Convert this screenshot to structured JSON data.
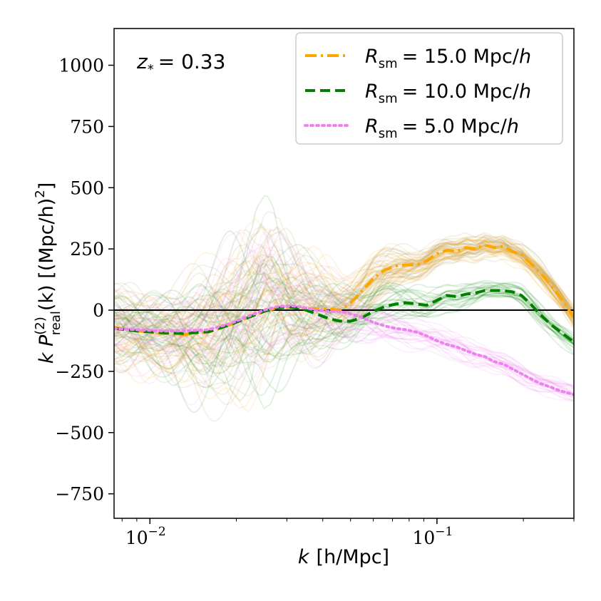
{
  "chart_data": {
    "type": "line",
    "title": "",
    "annotation": "z* = 0.33",
    "annotation_parts": {
      "symbol": "z",
      "subscript": "*",
      "value": "= 0.33"
    },
    "xlabel": "k [h/Mpc]",
    "xlabel_parts": {
      "var": "k",
      "units": "[h/Mpc]"
    },
    "ylabel": "k P_real^(2)(k) [(Mpc/h)^2]",
    "ylabel_parts": {
      "prefix": "k P",
      "sup": "(2)",
      "sub": "real",
      "arg": "(k) [(Mpc/h)",
      "power": "2",
      "close": "]"
    },
    "xscale": "log",
    "xlim": [
      0.0075,
      0.3
    ],
    "ylim": [
      -850,
      1150
    ],
    "xticks": [
      {
        "value": 0.01,
        "base": "10",
        "exp": "−2"
      },
      {
        "value": 0.1,
        "base": "10",
        "exp": "−1"
      }
    ],
    "yticks": [
      {
        "value": -750,
        "label": "−750"
      },
      {
        "value": -500,
        "label": "−500"
      },
      {
        "value": -250,
        "label": "−250"
      },
      {
        "value": 0,
        "label": "0"
      },
      {
        "value": 250,
        "label": "250"
      },
      {
        "value": 500,
        "label": "500"
      },
      {
        "value": 750,
        "label": "750"
      },
      {
        "value": 1000,
        "label": "1000"
      }
    ],
    "reference_line": {
      "y": 0,
      "color": "#000000"
    },
    "legend": {
      "location": "top-right"
    },
    "series": [
      {
        "name": "R_sm = 15.0 Mpc/h",
        "legend": {
          "symbol": "R",
          "sub": "sm",
          "value": "= 15.0 Mpc/",
          "unit": "h"
        },
        "color": "#ffa500",
        "style": "dashdot",
        "x": [
          0.0075,
          0.009,
          0.011,
          0.013,
          0.016,
          0.019,
          0.022,
          0.025,
          0.028,
          0.031,
          0.034,
          0.038,
          0.042,
          0.046,
          0.05,
          0.055,
          0.06,
          0.066,
          0.072,
          0.078,
          0.085,
          0.092,
          0.1,
          0.108,
          0.117,
          0.126,
          0.136,
          0.147,
          0.158,
          0.17,
          0.183,
          0.197,
          0.212,
          0.23,
          0.25,
          0.27,
          0.3
        ],
        "values": [
          -70,
          -85,
          -95,
          -100,
          -90,
          -60,
          -30,
          -5,
          10,
          12,
          8,
          5,
          5,
          0,
          30,
          80,
          130,
          165,
          180,
          185,
          185,
          200,
          230,
          245,
          240,
          255,
          250,
          265,
          255,
          260,
          240,
          225,
          190,
          150,
          100,
          50,
          -30
        ],
        "spread": [
          175,
          180,
          200,
          240,
          290,
          340,
          350,
          330,
          300,
          270,
          250,
          220,
          190,
          160,
          140,
          120,
          110,
          100,
          90,
          85,
          80,
          75,
          70,
          65,
          62,
          60,
          58,
          56,
          55,
          54,
          53,
          52,
          52,
          52,
          52,
          52,
          52
        ],
        "bias": [
          0,
          0,
          0,
          0,
          0,
          60,
          160,
          220,
          120,
          20,
          0,
          0,
          0,
          0,
          0,
          0,
          0,
          0,
          0,
          0,
          0,
          0,
          0,
          0,
          0,
          0,
          0,
          0,
          0,
          0,
          0,
          0,
          0,
          0,
          0,
          0,
          0
        ]
      },
      {
        "name": "R_sm = 10.0 Mpc/h",
        "legend": {
          "symbol": "R",
          "sub": "sm",
          "value": "= 10.0 Mpc/",
          "unit": "h"
        },
        "color": "#008000",
        "style": "dashed",
        "x": [
          0.0075,
          0.009,
          0.011,
          0.013,
          0.016,
          0.019,
          0.022,
          0.025,
          0.028,
          0.031,
          0.034,
          0.038,
          0.042,
          0.046,
          0.05,
          0.055,
          0.06,
          0.066,
          0.072,
          0.078,
          0.085,
          0.092,
          0.1,
          0.108,
          0.117,
          0.126,
          0.136,
          0.147,
          0.158,
          0.17,
          0.183,
          0.197,
          0.212,
          0.23,
          0.25,
          0.27,
          0.3
        ],
        "values": [
          -75,
          -85,
          -92,
          -95,
          -88,
          -60,
          -30,
          -5,
          10,
          12,
          5,
          -15,
          -35,
          -45,
          -45,
          -30,
          -5,
          15,
          25,
          30,
          25,
          20,
          40,
          60,
          55,
          65,
          70,
          80,
          80,
          80,
          75,
          60,
          25,
          -20,
          -60,
          -90,
          -130
        ],
        "spread": [
          175,
          180,
          200,
          240,
          290,
          340,
          350,
          330,
          300,
          270,
          250,
          220,
          190,
          160,
          140,
          120,
          110,
          100,
          90,
          85,
          80,
          75,
          70,
          65,
          62,
          60,
          58,
          56,
          55,
          54,
          53,
          52,
          52,
          52,
          52,
          52,
          52
        ],
        "bias": [
          0,
          0,
          0,
          0,
          0,
          60,
          160,
          220,
          120,
          20,
          0,
          0,
          0,
          0,
          0,
          0,
          0,
          0,
          0,
          0,
          0,
          0,
          0,
          0,
          0,
          0,
          0,
          0,
          0,
          0,
          0,
          0,
          0,
          0,
          0,
          0,
          0
        ]
      },
      {
        "name": "R_sm = 5.0 Mpc/h",
        "legend": {
          "symbol": "R",
          "sub": "sm",
          "value": "= 5.0 Mpc/",
          "unit": "h"
        },
        "color": "#ee82ee",
        "style": "dotted",
        "x": [
          0.0075,
          0.009,
          0.011,
          0.013,
          0.016,
          0.019,
          0.022,
          0.025,
          0.028,
          0.031,
          0.034,
          0.038,
          0.042,
          0.046,
          0.05,
          0.055,
          0.06,
          0.066,
          0.072,
          0.078,
          0.085,
          0.092,
          0.1,
          0.108,
          0.117,
          0.126,
          0.136,
          0.147,
          0.158,
          0.17,
          0.183,
          0.197,
          0.212,
          0.23,
          0.25,
          0.27,
          0.3
        ],
        "values": [
          -75,
          -80,
          -85,
          -85,
          -80,
          -55,
          -25,
          0,
          15,
          18,
          12,
          0,
          -5,
          -5,
          -15,
          -30,
          -50,
          -65,
          -75,
          -80,
          -90,
          -105,
          -125,
          -140,
          -150,
          -165,
          -180,
          -190,
          -210,
          -220,
          -240,
          -260,
          -280,
          -300,
          -315,
          -330,
          -345
        ],
        "spread": [
          175,
          180,
          200,
          240,
          290,
          340,
          350,
          330,
          300,
          270,
          250,
          220,
          190,
          160,
          140,
          120,
          110,
          100,
          90,
          85,
          80,
          75,
          70,
          65,
          62,
          60,
          58,
          56,
          55,
          54,
          53,
          52,
          52,
          52,
          52,
          52,
          52
        ],
        "bias": [
          0,
          0,
          0,
          0,
          0,
          60,
          160,
          220,
          120,
          20,
          0,
          0,
          0,
          0,
          0,
          0,
          0,
          0,
          0,
          0,
          0,
          0,
          0,
          0,
          0,
          0,
          0,
          0,
          0,
          0,
          0,
          0,
          0,
          0,
          0,
          0,
          0
        ]
      }
    ],
    "realizations": {
      "per_series": 28,
      "opacity": 0.09,
      "olive_color": "#b5a575",
      "olive_count": 40
    }
  }
}
